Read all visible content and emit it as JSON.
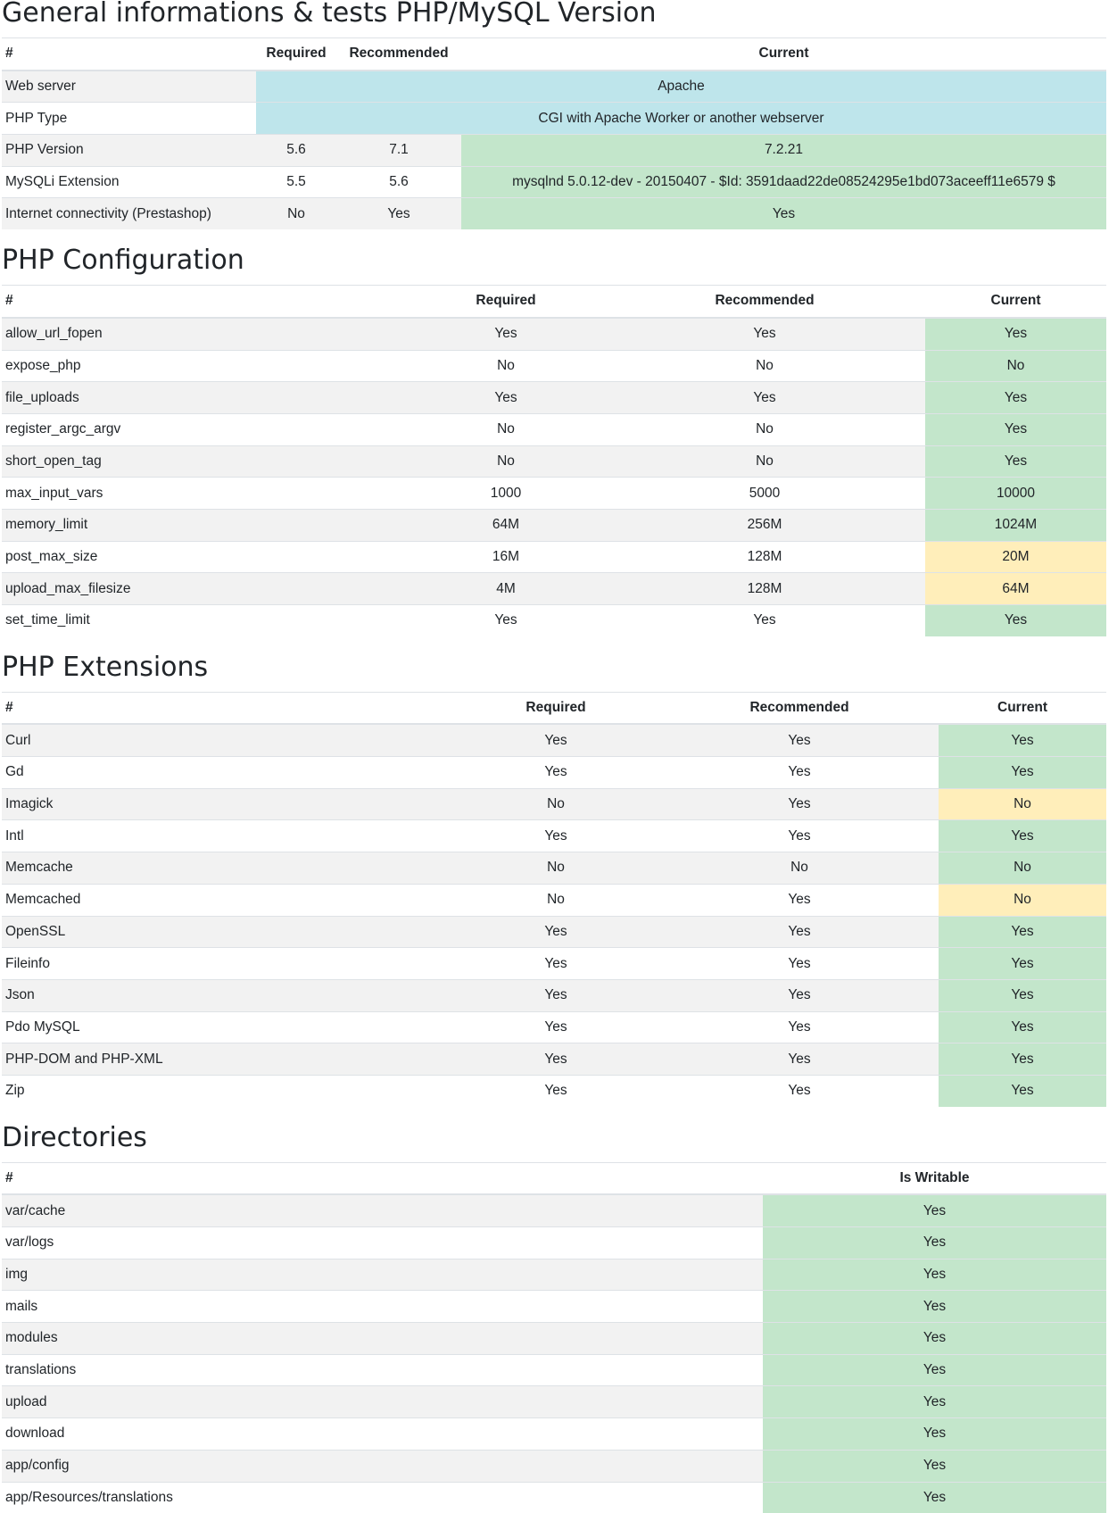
{
  "general": {
    "title": "General informations & tests PHP/MySQL Version",
    "headers": {
      "name": "#",
      "required": "Required",
      "recommended": "Recommended",
      "current": "Current"
    },
    "web_server": {
      "label": "Web server",
      "current": "Apache"
    },
    "php_type": {
      "label": "PHP Type",
      "current": "CGI with Apache Worker or another webserver"
    },
    "php_version": {
      "label": "PHP Version",
      "required": "5.6",
      "recommended": "7.1",
      "current": "7.2.21"
    },
    "mysqli": {
      "label": "MySQLi Extension",
      "required": "5.5",
      "recommended": "5.6",
      "current": "mysqlnd 5.0.12-dev - 20150407 - $Id: 3591daad22de08524295e1bd073aceeff11e6579 $"
    },
    "internet": {
      "label": "Internet connectivity (Prestashop)",
      "required": "No",
      "recommended": "Yes",
      "current": "Yes"
    }
  },
  "php_config": {
    "title": "PHP Configuration",
    "headers": {
      "name": "#",
      "required": "Required",
      "recommended": "Recommended",
      "current": "Current"
    },
    "rows": [
      {
        "name": "allow_url_fopen",
        "required": "Yes",
        "recommended": "Yes",
        "current": "Yes",
        "status": "success"
      },
      {
        "name": "expose_php",
        "required": "No",
        "recommended": "No",
        "current": "No",
        "status": "success"
      },
      {
        "name": "file_uploads",
        "required": "Yes",
        "recommended": "Yes",
        "current": "Yes",
        "status": "success"
      },
      {
        "name": "register_argc_argv",
        "required": "No",
        "recommended": "No",
        "current": "Yes",
        "status": "success"
      },
      {
        "name": "short_open_tag",
        "required": "No",
        "recommended": "No",
        "current": "Yes",
        "status": "success"
      },
      {
        "name": "max_input_vars",
        "required": "1000",
        "recommended": "5000",
        "current": "10000",
        "status": "success"
      },
      {
        "name": "memory_limit",
        "required": "64M",
        "recommended": "256M",
        "current": "1024M",
        "status": "success"
      },
      {
        "name": "post_max_size",
        "required": "16M",
        "recommended": "128M",
        "current": "20M",
        "status": "warning"
      },
      {
        "name": "upload_max_filesize",
        "required": "4M",
        "recommended": "128M",
        "current": "64M",
        "status": "warning"
      },
      {
        "name": "set_time_limit",
        "required": "Yes",
        "recommended": "Yes",
        "current": "Yes",
        "status": "success"
      }
    ]
  },
  "php_extensions": {
    "title": "PHP Extensions",
    "headers": {
      "name": "#",
      "required": "Required",
      "recommended": "Recommended",
      "current": "Current"
    },
    "rows": [
      {
        "name": "Curl",
        "required": "Yes",
        "recommended": "Yes",
        "current": "Yes",
        "status": "success"
      },
      {
        "name": "Gd",
        "required": "Yes",
        "recommended": "Yes",
        "current": "Yes",
        "status": "success"
      },
      {
        "name": "Imagick",
        "required": "No",
        "recommended": "Yes",
        "current": "No",
        "status": "warning"
      },
      {
        "name": "Intl",
        "required": "Yes",
        "recommended": "Yes",
        "current": "Yes",
        "status": "success"
      },
      {
        "name": "Memcache",
        "required": "No",
        "recommended": "No",
        "current": "No",
        "status": "success"
      },
      {
        "name": "Memcached",
        "required": "No",
        "recommended": "Yes",
        "current": "No",
        "status": "warning"
      },
      {
        "name": "OpenSSL",
        "required": "Yes",
        "recommended": "Yes",
        "current": "Yes",
        "status": "success"
      },
      {
        "name": "Fileinfo",
        "required": "Yes",
        "recommended": "Yes",
        "current": "Yes",
        "status": "success"
      },
      {
        "name": "Json",
        "required": "Yes",
        "recommended": "Yes",
        "current": "Yes",
        "status": "success"
      },
      {
        "name": "Pdo MySQL",
        "required": "Yes",
        "recommended": "Yes",
        "current": "Yes",
        "status": "success"
      },
      {
        "name": "PHP-DOM and PHP-XML",
        "required": "Yes",
        "recommended": "Yes",
        "current": "Yes",
        "status": "success"
      },
      {
        "name": "Zip",
        "required": "Yes",
        "recommended": "Yes",
        "current": "Yes",
        "status": "success"
      }
    ]
  },
  "directories": {
    "title": "Directories",
    "headers": {
      "name": "#",
      "writable": "Is Writable"
    },
    "rows": [
      {
        "name": "var/cache",
        "writable": "Yes",
        "status": "success"
      },
      {
        "name": "var/logs",
        "writable": "Yes",
        "status": "success"
      },
      {
        "name": "img",
        "writable": "Yes",
        "status": "success"
      },
      {
        "name": "mails",
        "writable": "Yes",
        "status": "success"
      },
      {
        "name": "modules",
        "writable": "Yes",
        "status": "success"
      },
      {
        "name": "translations",
        "writable": "Yes",
        "status": "success"
      },
      {
        "name": "upload",
        "writable": "Yes",
        "status": "success"
      },
      {
        "name": "download",
        "writable": "Yes",
        "status": "success"
      },
      {
        "name": "app/config",
        "writable": "Yes",
        "status": "success"
      },
      {
        "name": "app/Resources/translations",
        "writable": "Yes",
        "status": "success"
      }
    ]
  },
  "colors": {
    "info": "#bee5eb",
    "success": "#c3e6cb",
    "warning": "#ffeeba",
    "stripe": "#f2f2f2"
  }
}
